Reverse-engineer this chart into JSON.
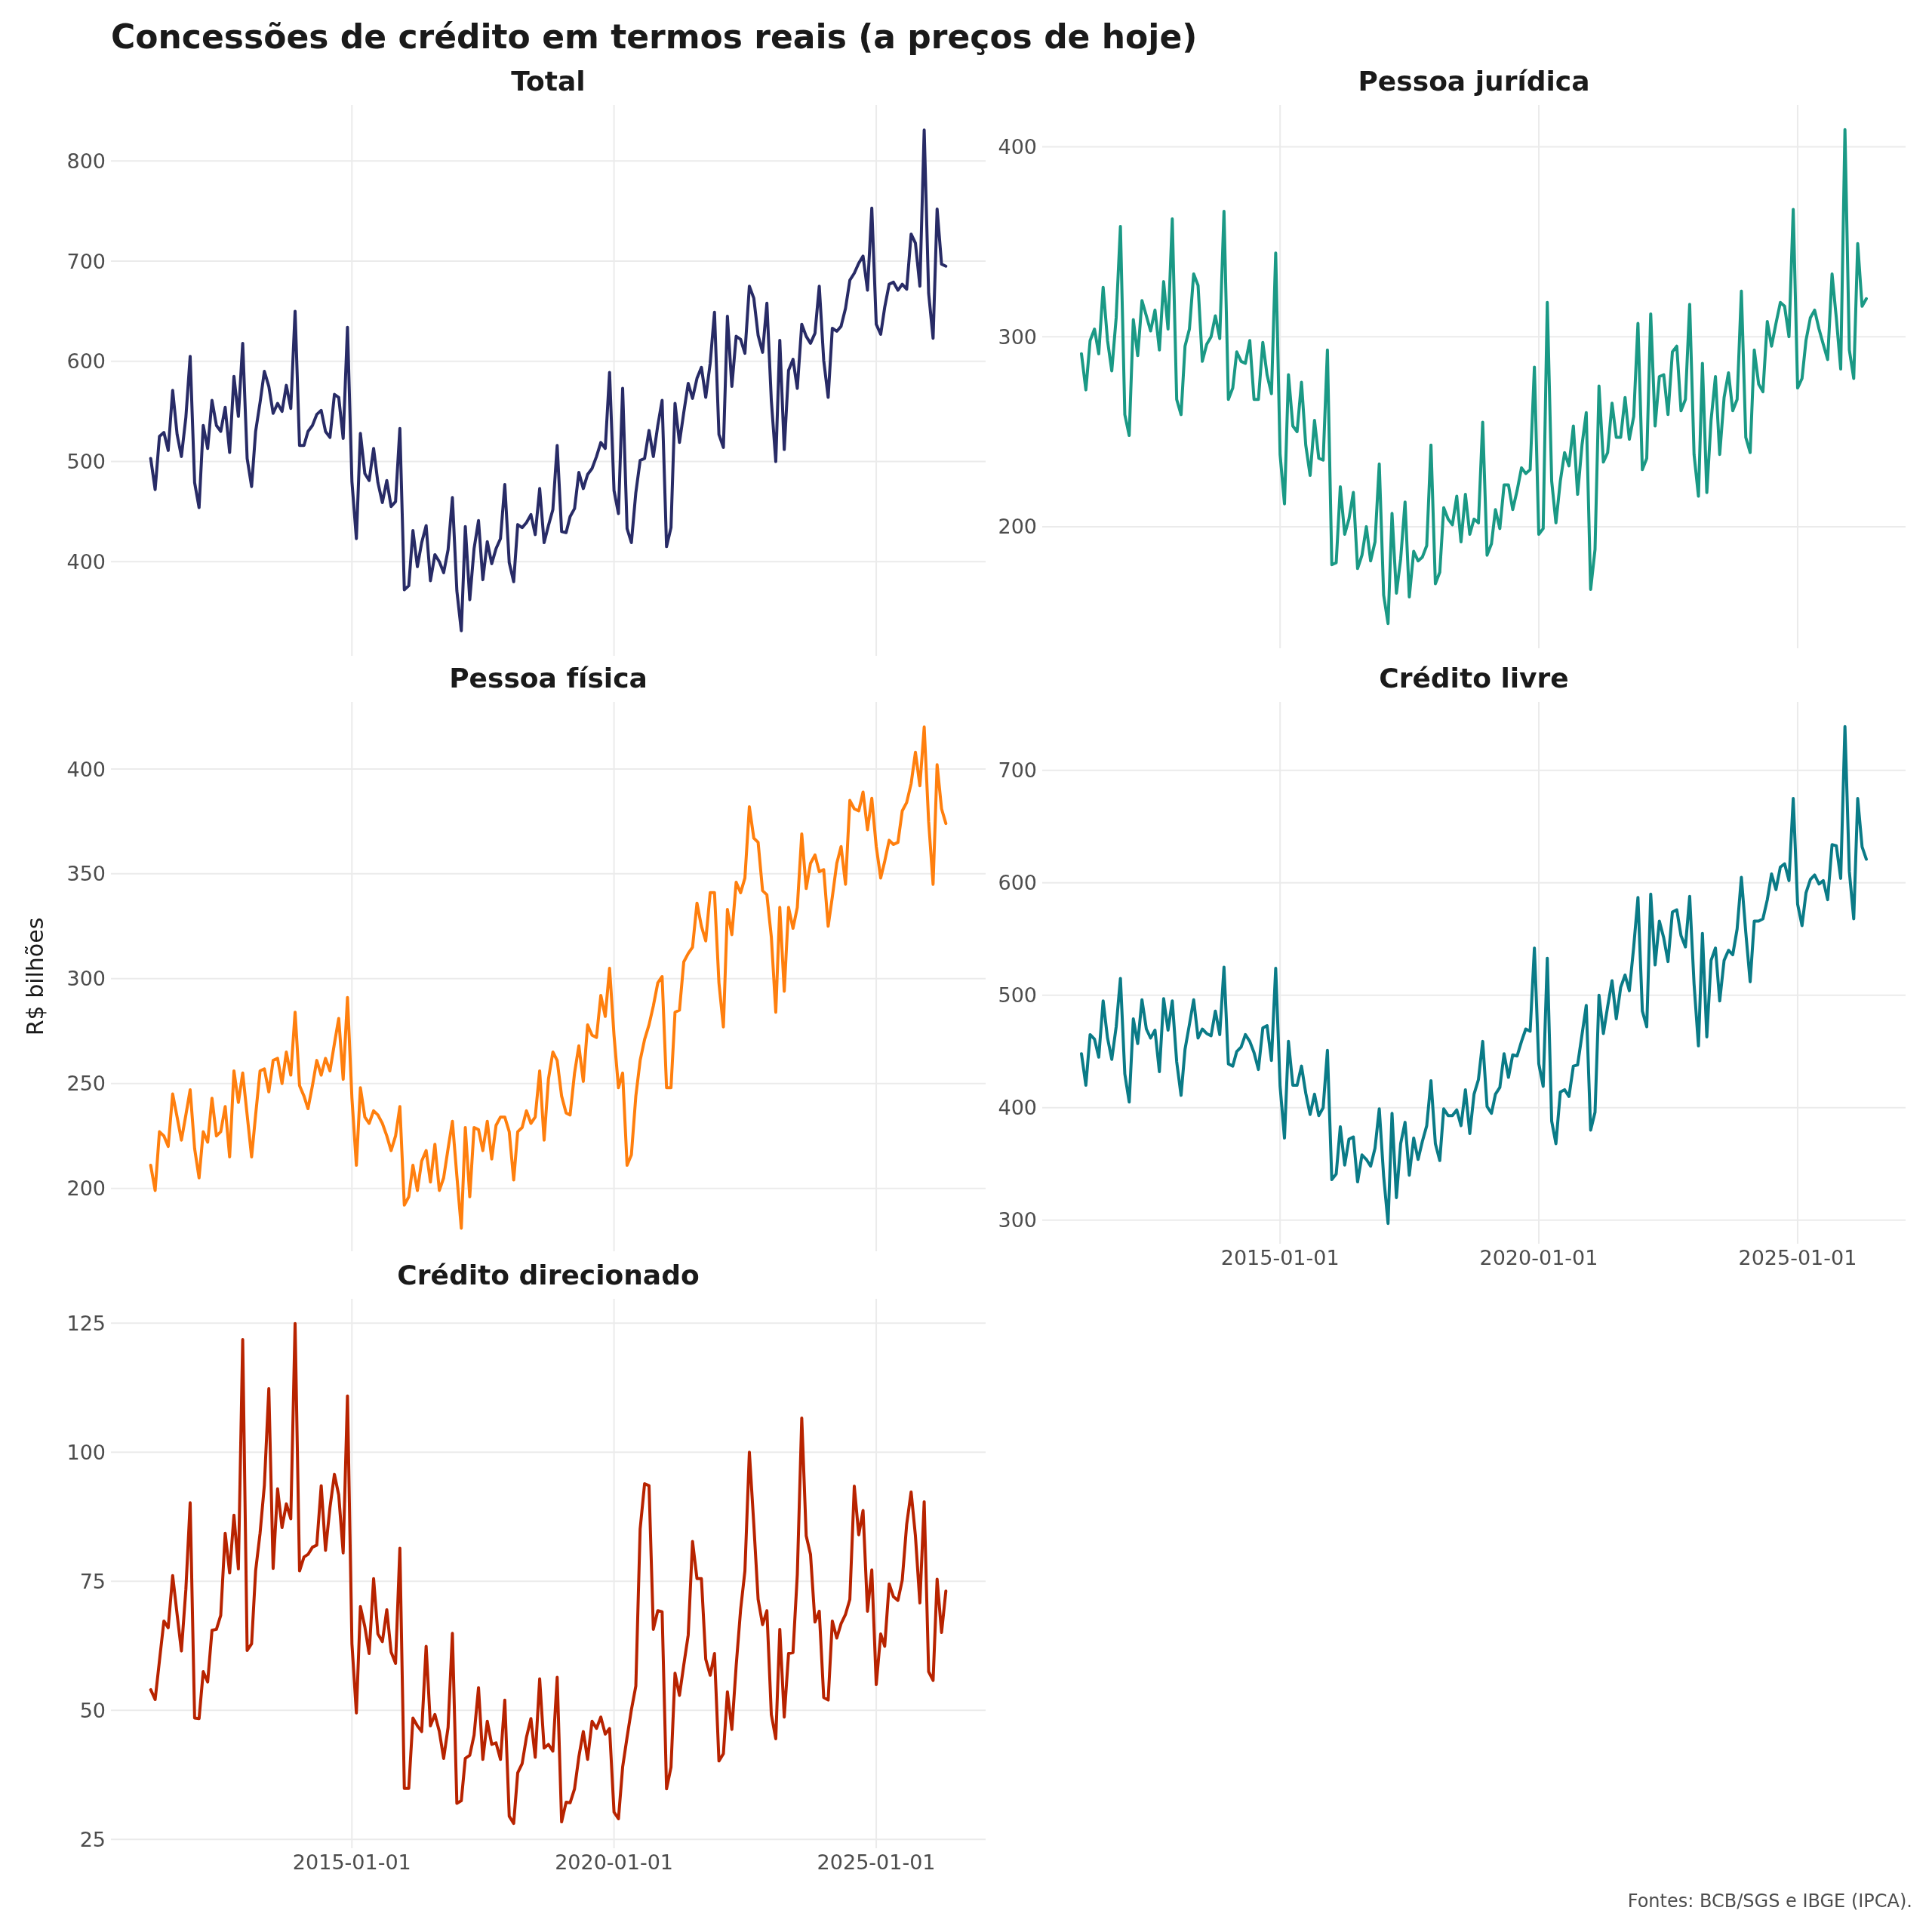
{
  "chart_data": [
    {
      "type": "other",
      "title": "Concessões de crédito em termos reais (a preços de hoje)"
    },
    {
      "type": "line",
      "title": "Total",
      "color": "#282b66",
      "xlim": [
        "2010-05-28",
        "2027-02-02"
      ],
      "xticks": [
        "2015-01-01",
        "2020-01-01",
        "2025-01-01"
      ],
      "ylim": [
        306,
        856
      ],
      "yticks": [
        400,
        500,
        600,
        700,
        800
      ],
      "grid": true,
      "tick_labels": "y",
      "x": [
        "2011-03",
        "2011-04",
        "2011-05",
        "2011-06",
        "2011-07",
        "2011-08",
        "2011-09",
        "2011-10",
        "2011-11",
        "2011-12",
        "2012-01",
        "2012-02",
        "2012-03",
        "2012-04",
        "2012-05",
        "2012-06",
        "2012-07",
        "2012-08",
        "2012-09",
        "2012-10",
        "2012-11",
        "2012-12",
        "2013-01",
        "2013-02",
        "2013-03",
        "2013-04",
        "2013-05",
        "2013-06",
        "2013-07",
        "2013-08",
        "2013-09",
        "2013-10",
        "2013-11",
        "2013-12",
        "2014-01",
        "2014-02",
        "2014-03",
        "2014-04",
        "2014-05",
        "2014-06",
        "2014-07",
        "2014-08",
        "2014-09",
        "2014-10",
        "2014-11",
        "2014-12",
        "2015-01",
        "2015-02",
        "2015-03",
        "2015-04",
        "2015-05",
        "2015-06",
        "2015-07",
        "2015-08",
        "2015-09",
        "2015-10",
        "2015-11",
        "2015-12",
        "2016-01",
        "2016-02",
        "2016-03",
        "2016-04",
        "2016-05",
        "2016-06",
        "2016-07",
        "2016-08",
        "2016-09",
        "2016-10",
        "2016-11",
        "2016-12",
        "2017-01",
        "2017-02",
        "2017-03",
        "2017-04",
        "2017-05",
        "2017-06",
        "2017-07",
        "2017-08",
        "2017-09",
        "2017-10",
        "2017-11",
        "2017-12",
        "2018-01",
        "2018-02",
        "2018-03",
        "2018-04",
        "2018-05",
        "2018-06",
        "2018-07",
        "2018-08",
        "2018-09",
        "2018-10",
        "2018-11",
        "2018-12",
        "2019-01",
        "2019-02",
        "2019-03",
        "2019-04",
        "2019-05",
        "2019-06",
        "2019-07",
        "2019-08",
        "2019-09",
        "2019-10",
        "2019-11",
        "2019-12",
        "2020-01",
        "2020-02",
        "2020-03",
        "2020-04",
        "2020-05",
        "2020-06",
        "2020-07",
        "2020-08",
        "2020-09",
        "2020-10",
        "2020-11",
        "2020-12",
        "2021-01",
        "2021-02",
        "2021-03",
        "2021-04",
        "2021-05",
        "2021-06",
        "2021-07",
        "2021-08",
        "2021-09",
        "2021-10",
        "2021-11",
        "2021-12",
        "2022-01",
        "2022-02",
        "2022-03",
        "2022-04",
        "2022-05",
        "2022-06",
        "2022-07",
        "2022-08",
        "2022-09",
        "2022-10",
        "2022-11",
        "2022-12",
        "2023-01",
        "2023-02",
        "2023-03",
        "2023-04",
        "2023-05",
        "2023-06",
        "2023-07",
        "2023-08",
        "2023-09",
        "2023-10",
        "2023-11",
        "2023-12",
        "2024-01",
        "2024-02",
        "2024-03",
        "2024-04",
        "2024-05",
        "2024-06",
        "2024-07",
        "2024-08",
        "2024-09",
        "2024-10",
        "2024-11",
        "2024-12",
        "2025-01",
        "2025-02",
        "2025-03",
        "2025-04",
        "2025-05",
        "2025-06",
        "2025-07",
        "2025-08",
        "2025-09",
        "2025-10",
        "2025-11",
        "2025-12",
        "2026-01",
        "2026-02",
        "2026-03",
        "2026-04",
        "2026-05"
      ],
      "values": [
        503,
        472,
        525,
        529,
        511,
        571,
        527,
        505,
        544,
        605,
        479,
        454,
        536,
        513,
        561,
        536,
        530,
        554,
        509,
        585,
        545,
        618,
        503,
        475,
        530,
        559,
        590,
        575,
        548,
        558,
        550,
        576,
        553,
        650,
        516,
        516,
        530,
        536,
        547,
        551,
        530,
        524,
        567,
        564,
        523,
        634,
        480,
        423,
        528,
        488,
        481,
        513,
        479,
        459,
        481,
        455,
        460,
        533,
        372,
        376,
        431,
        395,
        419,
        436,
        381,
        407,
        400,
        389,
        412,
        464,
        371,
        331,
        435,
        362,
        413,
        441,
        382,
        420,
        398,
        413,
        423,
        477,
        399,
        380,
        437,
        434,
        439,
        447,
        427,
        473,
        419,
        436,
        452,
        516,
        430,
        429,
        445,
        453,
        489,
        473,
        487,
        493,
        505,
        519,
        513,
        589,
        471,
        448,
        573,
        433,
        419,
        469,
        501,
        503,
        531,
        505,
        536,
        561,
        415,
        434,
        558,
        519,
        549,
        578,
        563,
        583,
        594,
        564,
        598,
        649,
        527,
        514,
        645,
        575,
        625,
        622,
        608,
        675,
        663,
        626,
        609,
        658,
        561,
        500,
        621,
        512,
        591,
        602,
        573,
        637,
        625,
        618,
        628,
        675,
        601,
        564,
        633,
        630,
        635,
        653,
        681,
        688,
        698,
        705,
        671,
        753,
        637,
        627,
        654,
        677,
        679,
        671,
        677,
        672,
        727,
        718,
        675,
        831,
        668,
        623,
        752,
        697,
        695
      ]
    },
    {
      "type": "line",
      "title": "Pessoa jurídica",
      "color": "#1a9985",
      "xlim": [
        "2010-05-28",
        "2027-02-02"
      ],
      "xticks": [
        "2015-01-01",
        "2020-01-01",
        "2025-01-01"
      ],
      "ylim": [
        136,
        422
      ],
      "yticks": [
        200,
        300,
        400
      ],
      "grid": true,
      "tick_labels": "y",
      "x": [
        "2011-03",
        "2011-04",
        "2011-05",
        "2011-06",
        "2011-07",
        "2011-08",
        "2011-09",
        "2011-10",
        "2011-11",
        "2011-12",
        "2012-01",
        "2012-02",
        "2012-03",
        "2012-04",
        "2012-05",
        "2012-06",
        "2012-07",
        "2012-08",
        "2012-09",
        "2012-10",
        "2012-11",
        "2012-12",
        "2013-01",
        "2013-02",
        "2013-03",
        "2013-04",
        "2013-05",
        "2013-06",
        "2013-07",
        "2013-08",
        "2013-09",
        "2013-10",
        "2013-11",
        "2013-12",
        "2014-01",
        "2014-02",
        "2014-03",
        "2014-04",
        "2014-05",
        "2014-06",
        "2014-07",
        "2014-08",
        "2014-09",
        "2014-10",
        "2014-11",
        "2014-12",
        "2015-01",
        "2015-02",
        "2015-03",
        "2015-04",
        "2015-05",
        "2015-06",
        "2015-07",
        "2015-08",
        "2015-09",
        "2015-10",
        "2015-11",
        "2015-12",
        "2016-01",
        "2016-02",
        "2016-03",
        "2016-04",
        "2016-05",
        "2016-06",
        "2016-07",
        "2016-08",
        "2016-09",
        "2016-10",
        "2016-11",
        "2016-12",
        "2017-01",
        "2017-02",
        "2017-03",
        "2017-04",
        "2017-05",
        "2017-06",
        "2017-07",
        "2017-08",
        "2017-09",
        "2017-10",
        "2017-11",
        "2017-12",
        "2018-01",
        "2018-02",
        "2018-03",
        "2018-04",
        "2018-05",
        "2018-06",
        "2018-07",
        "2018-08",
        "2018-09",
        "2018-10",
        "2018-11",
        "2018-12",
        "2019-01",
        "2019-02",
        "2019-03",
        "2019-04",
        "2019-05",
        "2019-06",
        "2019-07",
        "2019-08",
        "2019-09",
        "2019-10",
        "2019-11",
        "2019-12",
        "2020-01",
        "2020-02",
        "2020-03",
        "2020-04",
        "2020-05",
        "2020-06",
        "2020-07",
        "2020-08",
        "2020-09",
        "2020-10",
        "2020-11",
        "2020-12",
        "2021-01",
        "2021-02",
        "2021-03",
        "2021-04",
        "2021-05",
        "2021-06",
        "2021-07",
        "2021-08",
        "2021-09",
        "2021-10",
        "2021-11",
        "2021-12",
        "2022-01",
        "2022-02",
        "2022-03",
        "2022-04",
        "2022-05",
        "2022-06",
        "2022-07",
        "2022-08",
        "2022-09",
        "2022-10",
        "2022-11",
        "2022-12",
        "2023-01",
        "2023-02",
        "2023-03",
        "2023-04",
        "2023-05",
        "2023-06",
        "2023-07",
        "2023-08",
        "2023-09",
        "2023-10",
        "2023-11",
        "2023-12",
        "2024-01",
        "2024-02",
        "2024-03",
        "2024-04",
        "2024-05",
        "2024-06",
        "2024-07",
        "2024-08",
        "2024-09",
        "2024-10",
        "2024-11",
        "2024-12",
        "2025-01",
        "2025-02",
        "2025-03",
        "2025-04",
        "2025-05",
        "2025-06",
        "2025-07",
        "2025-08",
        "2025-09",
        "2025-10",
        "2025-11",
        "2025-12",
        "2026-01",
        "2026-02",
        "2026-03",
        "2026-04",
        "2026-05"
      ],
      "values": [
        291,
        272,
        298,
        304,
        291,
        326,
        298,
        282,
        310,
        358,
        259,
        248,
        309,
        290,
        319,
        311,
        303,
        314,
        293,
        329,
        304,
        362,
        267,
        259,
        295,
        304,
        333,
        327,
        287,
        296,
        300,
        311,
        299,
        366,
        267,
        273,
        292,
        287,
        286,
        298,
        267,
        267,
        297,
        280,
        270,
        344,
        238,
        212,
        280,
        253,
        250,
        276,
        243,
        227,
        256,
        236,
        235,
        293,
        180,
        181,
        221,
        196,
        204,
        218,
        178,
        185,
        200,
        182,
        192,
        233,
        164,
        149,
        207,
        165,
        183,
        213,
        163,
        187,
        182,
        184,
        190,
        243,
        170,
        176,
        210,
        204,
        201,
        216,
        192,
        217,
        196,
        204,
        202,
        255,
        185,
        191,
        209,
        199,
        222,
        222,
        209,
        219,
        231,
        228,
        230,
        284,
        196,
        199,
        318,
        224,
        202,
        224,
        239,
        232,
        253,
        217,
        243,
        260,
        167,
        188,
        274,
        234,
        239,
        265,
        247,
        247,
        268,
        246,
        258,
        307,
        230,
        236,
        312,
        253,
        279,
        280,
        259,
        292,
        295,
        261,
        267,
        317,
        238,
        216,
        286,
        218,
        256,
        279,
        238,
        268,
        281,
        261,
        267,
        324,
        247,
        239,
        293,
        275,
        271,
        308,
        295,
        307,
        318,
        316,
        300,
        367,
        273,
        278,
        298,
        310,
        314,
        304,
        296,
        288,
        333,
        310,
        283,
        409,
        293,
        278,
        349,
        316,
        320
      ]
    },
    {
      "type": "line",
      "title": "Pessoa física",
      "ylabel": "R$ bilhões",
      "color": "#ff7f0e",
      "xlim": [
        "2010-05-28",
        "2027-02-02"
      ],
      "xticks": [
        "2015-01-01",
        "2020-01-01",
        "2025-01-01"
      ],
      "ylim": [
        170,
        432
      ],
      "yticks": [
        200,
        250,
        300,
        350,
        400
      ],
      "grid": true,
      "tick_labels": "y",
      "x": [
        "2011-03",
        "2011-04",
        "2011-05",
        "2011-06",
        "2011-07",
        "2011-08",
        "2011-09",
        "2011-10",
        "2011-11",
        "2011-12",
        "2012-01",
        "2012-02",
        "2012-03",
        "2012-04",
        "2012-05",
        "2012-06",
        "2012-07",
        "2012-08",
        "2012-09",
        "2012-10",
        "2012-11",
        "2012-12",
        "2013-01",
        "2013-02",
        "2013-03",
        "2013-04",
        "2013-05",
        "2013-06",
        "2013-07",
        "2013-08",
        "2013-09",
        "2013-10",
        "2013-11",
        "2013-12",
        "2014-01",
        "2014-02",
        "2014-03",
        "2014-04",
        "2014-05",
        "2014-06",
        "2014-07",
        "2014-08",
        "2014-09",
        "2014-10",
        "2014-11",
        "2014-12",
        "2015-01",
        "2015-02",
        "2015-03",
        "2015-04",
        "2015-05",
        "2015-06",
        "2015-07",
        "2015-08",
        "2015-09",
        "2015-10",
        "2015-11",
        "2015-12",
        "2016-01",
        "2016-02",
        "2016-03",
        "2016-04",
        "2016-05",
        "2016-06",
        "2016-07",
        "2016-08",
        "2016-09",
        "2016-10",
        "2016-11",
        "2016-12",
        "2017-01",
        "2017-02",
        "2017-03",
        "2017-04",
        "2017-05",
        "2017-06",
        "2017-07",
        "2017-08",
        "2017-09",
        "2017-10",
        "2017-11",
        "2017-12",
        "2018-01",
        "2018-02",
        "2018-03",
        "2018-04",
        "2018-05",
        "2018-06",
        "2018-07",
        "2018-08",
        "2018-09",
        "2018-10",
        "2018-11",
        "2018-12",
        "2019-01",
        "2019-02",
        "2019-03",
        "2019-04",
        "2019-05",
        "2019-06",
        "2019-07",
        "2019-08",
        "2019-09",
        "2019-10",
        "2019-11",
        "2019-12",
        "2020-01",
        "2020-02",
        "2020-03",
        "2020-04",
        "2020-05",
        "2020-06",
        "2020-07",
        "2020-08",
        "2020-09",
        "2020-10",
        "2020-11",
        "2020-12",
        "2021-01",
        "2021-02",
        "2021-03",
        "2021-04",
        "2021-05",
        "2021-06",
        "2021-07",
        "2021-08",
        "2021-09",
        "2021-10",
        "2021-11",
        "2021-12",
        "2022-01",
        "2022-02",
        "2022-03",
        "2022-04",
        "2022-05",
        "2022-06",
        "2022-07",
        "2022-08",
        "2022-09",
        "2022-10",
        "2022-11",
        "2022-12",
        "2023-01",
        "2023-02",
        "2023-03",
        "2023-04",
        "2023-05",
        "2023-06",
        "2023-07",
        "2023-08",
        "2023-09",
        "2023-10",
        "2023-11",
        "2023-12",
        "2024-01",
        "2024-02",
        "2024-03",
        "2024-04",
        "2024-05",
        "2024-06",
        "2024-07",
        "2024-08",
        "2024-09",
        "2024-10",
        "2024-11",
        "2024-12",
        "2025-01",
        "2025-02",
        "2025-03",
        "2025-04",
        "2025-05",
        "2025-06",
        "2025-07",
        "2025-08",
        "2025-09",
        "2025-10",
        "2025-11",
        "2025-12",
        "2026-01",
        "2026-02",
        "2026-03",
        "2026-04",
        "2026-05"
      ],
      "values": [
        211,
        199,
        227,
        225,
        220,
        245,
        234,
        223,
        235,
        247,
        219,
        205,
        227,
        222,
        243,
        225,
        227,
        239,
        215,
        256,
        241,
        255,
        235,
        215,
        235,
        256,
        257,
        246,
        261,
        262,
        250,
        265,
        254,
        284,
        249,
        244,
        238,
        249,
        261,
        254,
        262,
        256,
        269,
        281,
        252,
        291,
        243,
        211,
        248,
        234,
        231,
        237,
        235,
        231,
        225,
        218,
        225,
        239,
        192,
        196,
        211,
        199,
        213,
        218,
        203,
        221,
        199,
        205,
        219,
        232,
        206,
        181,
        229,
        196,
        229,
        228,
        218,
        232,
        214,
        230,
        234,
        234,
        227,
        204,
        227,
        229,
        237,
        231,
        234,
        256,
        223,
        252,
        265,
        261,
        244,
        236,
        235,
        255,
        268,
        251,
        278,
        273,
        272,
        292,
        282,
        305,
        273,
        248,
        255,
        211,
        216,
        244,
        261,
        271,
        278,
        287,
        298,
        301,
        248,
        248,
        284,
        285,
        308,
        312,
        315,
        336,
        325,
        318,
        341,
        341,
        298,
        277,
        333,
        321,
        346,
        341,
        348,
        382,
        367,
        365,
        342,
        340,
        320,
        284,
        334,
        294,
        334,
        324,
        334,
        369,
        343,
        355,
        359,
        351,
        352,
        325,
        339,
        355,
        363,
        345,
        385,
        381,
        380,
        389,
        371,
        386,
        363,
        348,
        356,
        366,
        364,
        365,
        380,
        384,
        393,
        408,
        392,
        420,
        375,
        345,
        402,
        381,
        374
      ]
    },
    {
      "type": "line",
      "title": "Crédito livre",
      "color": "#0a7b87",
      "xlim": [
        "2010-05-28",
        "2027-02-02"
      ],
      "xticks": [
        "2015-01-01",
        "2020-01-01",
        "2025-01-01"
      ],
      "ylim": [
        279,
        761
      ],
      "yticks": [
        300,
        400,
        500,
        600,
        700
      ],
      "grid": true,
      "x": [
        "2011-03",
        "2011-04",
        "2011-05",
        "2011-06",
        "2011-07",
        "2011-08",
        "2011-09",
        "2011-10",
        "2011-11",
        "2011-12",
        "2012-01",
        "2012-02",
        "2012-03",
        "2012-04",
        "2012-05",
        "2012-06",
        "2012-07",
        "2012-08",
        "2012-09",
        "2012-10",
        "2012-11",
        "2012-12",
        "2013-01",
        "2013-02",
        "2013-03",
        "2013-04",
        "2013-05",
        "2013-06",
        "2013-07",
        "2013-08",
        "2013-09",
        "2013-10",
        "2013-11",
        "2013-12",
        "2014-01",
        "2014-02",
        "2014-03",
        "2014-04",
        "2014-05",
        "2014-06",
        "2014-07",
        "2014-08",
        "2014-09",
        "2014-10",
        "2014-11",
        "2014-12",
        "2015-01",
        "2015-02",
        "2015-03",
        "2015-04",
        "2015-05",
        "2015-06",
        "2015-07",
        "2015-08",
        "2015-09",
        "2015-10",
        "2015-11",
        "2015-12",
        "2016-01",
        "2016-02",
        "2016-03",
        "2016-04",
        "2016-05",
        "2016-06",
        "2016-07",
        "2016-08",
        "2016-09",
        "2016-10",
        "2016-11",
        "2016-12",
        "2017-01",
        "2017-02",
        "2017-03",
        "2017-04",
        "2017-05",
        "2017-06",
        "2017-07",
        "2017-08",
        "2017-09",
        "2017-10",
        "2017-11",
        "2017-12",
        "2018-01",
        "2018-02",
        "2018-03",
        "2018-04",
        "2018-05",
        "2018-06",
        "2018-07",
        "2018-08",
        "2018-09",
        "2018-10",
        "2018-11",
        "2018-12",
        "2019-01",
        "2019-02",
        "2019-03",
        "2019-04",
        "2019-05",
        "2019-06",
        "2019-07",
        "2019-08",
        "2019-09",
        "2019-10",
        "2019-11",
        "2019-12",
        "2020-01",
        "2020-02",
        "2020-03",
        "2020-04",
        "2020-05",
        "2020-06",
        "2020-07",
        "2020-08",
        "2020-09",
        "2020-10",
        "2020-11",
        "2020-12",
        "2021-01",
        "2021-02",
        "2021-03",
        "2021-04",
        "2021-05",
        "2021-06",
        "2021-07",
        "2021-08",
        "2021-09",
        "2021-10",
        "2021-11",
        "2021-12",
        "2022-01",
        "2022-02",
        "2022-03",
        "2022-04",
        "2022-05",
        "2022-06",
        "2022-07",
        "2022-08",
        "2022-09",
        "2022-10",
        "2022-11",
        "2022-12",
        "2023-01",
        "2023-02",
        "2023-03",
        "2023-04",
        "2023-05",
        "2023-06",
        "2023-07",
        "2023-08",
        "2023-09",
        "2023-10",
        "2023-11",
        "2023-12",
        "2024-01",
        "2024-02",
        "2024-03",
        "2024-04",
        "2024-05",
        "2024-06",
        "2024-07",
        "2024-08",
        "2024-09",
        "2024-10",
        "2024-11",
        "2024-12",
        "2025-01",
        "2025-02",
        "2025-03",
        "2025-04",
        "2025-05",
        "2025-06",
        "2025-07",
        "2025-08",
        "2025-09",
        "2025-10",
        "2025-11",
        "2025-12",
        "2026-01",
        "2026-02",
        "2026-03",
        "2026-04",
        "2026-05"
      ],
      "values": [
        448,
        420,
        465,
        461,
        445,
        495,
        462,
        443,
        472,
        515,
        430,
        405,
        479,
        457,
        496,
        470,
        462,
        469,
        432,
        497,
        469,
        495,
        441,
        411,
        452,
        474,
        496,
        462,
        470,
        466,
        464,
        486,
        465,
        525,
        439,
        437,
        450,
        454,
        465,
        459,
        449,
        434,
        471,
        473,
        442,
        524,
        419,
        373,
        459,
        420,
        420,
        437,
        413,
        394,
        412,
        393,
        400,
        451,
        336,
        341,
        383,
        349,
        372,
        374,
        334,
        358,
        354,
        348,
        364,
        399,
        339,
        297,
        395,
        320,
        368,
        387,
        340,
        373,
        354,
        370,
        384,
        424,
        368,
        353,
        399,
        393,
        393,
        398,
        384,
        416,
        377,
        412,
        425,
        459,
        401,
        395,
        412,
        418,
        448,
        427,
        447,
        446,
        459,
        470,
        468,
        542,
        439,
        419,
        533,
        388,
        368,
        414,
        416,
        410,
        437,
        438,
        465,
        491,
        380,
        396,
        500,
        466,
        490,
        513,
        479,
        507,
        518,
        504,
        543,
        587,
        486,
        472,
        590,
        527,
        566,
        551,
        530,
        574,
        576,
        553,
        543,
        588,
        510,
        455,
        555,
        463,
        531,
        542,
        495,
        531,
        540,
        536,
        559,
        605,
        556,
        512,
        566,
        566,
        568,
        585,
        608,
        594,
        614,
        617,
        602,
        675,
        581,
        562,
        591,
        603,
        607,
        599,
        602,
        585,
        634,
        633,
        604,
        739,
        610,
        568,
        675,
        632,
        621
      ]
    },
    {
      "type": "line",
      "title": "Crédito direcionado",
      "annotations": [
        "Fontes: BCB/SGS e IBGE (IPCA)."
      ],
      "color": "#b82300",
      "xlim": [
        "2010-05-28",
        "2027-02-02"
      ],
      "xticks": [
        "2015-01-01",
        "2020-01-01",
        "2025-01-01"
      ],
      "ylim": [
        23.3,
        129.7
      ],
      "yticks": [
        25,
        50,
        75,
        100,
        125
      ],
      "grid": true,
      "x": [
        "2011-03",
        "2011-04",
        "2011-05",
        "2011-06",
        "2011-07",
        "2011-08",
        "2011-09",
        "2011-10",
        "2011-11",
        "2011-12",
        "2012-01",
        "2012-02",
        "2012-03",
        "2012-04",
        "2012-05",
        "2012-06",
        "2012-07",
        "2012-08",
        "2012-09",
        "2012-10",
        "2012-11",
        "2012-12",
        "2013-01",
        "2013-02",
        "2013-03",
        "2013-04",
        "2013-05",
        "2013-06",
        "2013-07",
        "2013-08",
        "2013-09",
        "2013-10",
        "2013-11",
        "2013-12",
        "2014-01",
        "2014-02",
        "2014-03",
        "2014-04",
        "2014-05",
        "2014-06",
        "2014-07",
        "2014-08",
        "2014-09",
        "2014-10",
        "2014-11",
        "2014-12",
        "2015-01",
        "2015-02",
        "2015-03",
        "2015-04",
        "2015-05",
        "2015-06",
        "2015-07",
        "2015-08",
        "2015-09",
        "2015-10",
        "2015-11",
        "2015-12",
        "2016-01",
        "2016-02",
        "2016-03",
        "2016-04",
        "2016-05",
        "2016-06",
        "2016-07",
        "2016-08",
        "2016-09",
        "2016-10",
        "2016-11",
        "2016-12",
        "2017-01",
        "2017-02",
        "2017-03",
        "2017-04",
        "2017-05",
        "2017-06",
        "2017-07",
        "2017-08",
        "2017-09",
        "2017-10",
        "2017-11",
        "2017-12",
        "2018-01",
        "2018-02",
        "2018-03",
        "2018-04",
        "2018-05",
        "2018-06",
        "2018-07",
        "2018-08",
        "2018-09",
        "2018-10",
        "2018-11",
        "2018-12",
        "2019-01",
        "2019-02",
        "2019-03",
        "2019-04",
        "2019-05",
        "2019-06",
        "2019-07",
        "2019-08",
        "2019-09",
        "2019-10",
        "2019-11",
        "2019-12",
        "2020-01",
        "2020-02",
        "2020-03",
        "2020-04",
        "2020-05",
        "2020-06",
        "2020-07",
        "2020-08",
        "2020-09",
        "2020-10",
        "2020-11",
        "2020-12",
        "2021-01",
        "2021-02",
        "2021-03",
        "2021-04",
        "2021-05",
        "2021-06",
        "2021-07",
        "2021-08",
        "2021-09",
        "2021-10",
        "2021-11",
        "2021-12",
        "2022-01",
        "2022-02",
        "2022-03",
        "2022-04",
        "2022-05",
        "2022-06",
        "2022-07",
        "2022-08",
        "2022-09",
        "2022-10",
        "2022-11",
        "2022-12",
        "2023-01",
        "2023-02",
        "2023-03",
        "2023-04",
        "2023-05",
        "2023-06",
        "2023-07",
        "2023-08",
        "2023-09",
        "2023-10",
        "2023-11",
        "2023-12",
        "2024-01",
        "2024-02",
        "2024-03",
        "2024-04",
        "2024-05",
        "2024-06",
        "2024-07",
        "2024-08",
        "2024-09",
        "2024-10",
        "2024-11",
        "2024-12",
        "2025-01",
        "2025-02",
        "2025-03",
        "2025-04",
        "2025-05",
        "2025-06",
        "2025-07",
        "2025-08",
        "2025-09",
        "2025-10",
        "2025-11",
        "2025-12",
        "2026-01",
        "2026-02",
        "2026-03",
        "2026-04",
        "2026-05"
      ],
      "values": [
        54.0,
        52.1,
        59.6,
        67.3,
        66.0,
        76.1,
        68.6,
        61.5,
        73.4,
        90.2,
        48.5,
        48.4,
        57.5,
        55.5,
        65.5,
        65.7,
        68.4,
        84.3,
        76.6,
        87.8,
        77.4,
        121.8,
        61.6,
        62.9,
        77.0,
        84.3,
        93.6,
        112.3,
        77.5,
        92.9,
        85.4,
        90.0,
        87.1,
        124.9,
        77.0,
        79.7,
        80.2,
        81.6,
        82.0,
        93.5,
        81.0,
        89.3,
        95.7,
        91.7,
        80.5,
        110.9,
        62.9,
        49.5,
        70.1,
        66.2,
        61.0,
        75.5,
        64.8,
        63.3,
        69.5,
        61.3,
        59.1,
        81.4,
        34.9,
        34.9,
        48.5,
        47.0,
        45.9,
        62.4,
        47.0,
        49.2,
        45.9,
        40.7,
        46.7,
        64.9,
        32.0,
        32.5,
        40.7,
        41.3,
        45.2,
        54.4,
        40.5,
        47.9,
        43.4,
        43.7,
        40.5,
        52.0,
        29.5,
        28.1,
        37.9,
        39.7,
        44.8,
        48.4,
        40.9,
        56.1,
        42.7,
        43.4,
        42.1,
        56.4,
        28.4,
        32.2,
        32.1,
        34.8,
        41.0,
        45.9,
        40.5,
        47.9,
        46.5,
        48.7,
        45.4,
        46.5,
        30.3,
        29.0,
        39.0,
        44.8,
        50.1,
        54.7,
        85.1,
        93.9,
        93.5,
        65.7,
        69.3,
        69.1,
        34.8,
        39.0,
        57.2,
        52.9,
        58.8,
        64.6,
        82.7,
        75.5,
        75.5,
        59.9,
        56.8,
        61.0,
        40.2,
        41.6,
        53.6,
        46.3,
        58.6,
        69.5,
        77.0,
        100.0,
        86.0,
        71.5,
        66.6,
        69.3,
        49.2,
        44.5,
        65.7,
        48.7,
        61.0,
        61.2,
        76.3,
        106.6,
        83.8,
        80.2,
        67.1,
        69.2,
        52.5,
        52.0,
        67.3,
        64.0,
        66.8,
        68.6,
        71.5,
        93.4,
        84.0,
        88.7,
        69.2,
        77.2,
        55.0,
        64.8,
        62.4,
        74.5,
        72.0,
        71.3,
        75.2,
        86.0,
        92.3,
        83.8,
        70.8,
        90.4,
        57.5,
        55.8,
        75.4,
        65.1,
        73.1
      ]
    }
  ]
}
